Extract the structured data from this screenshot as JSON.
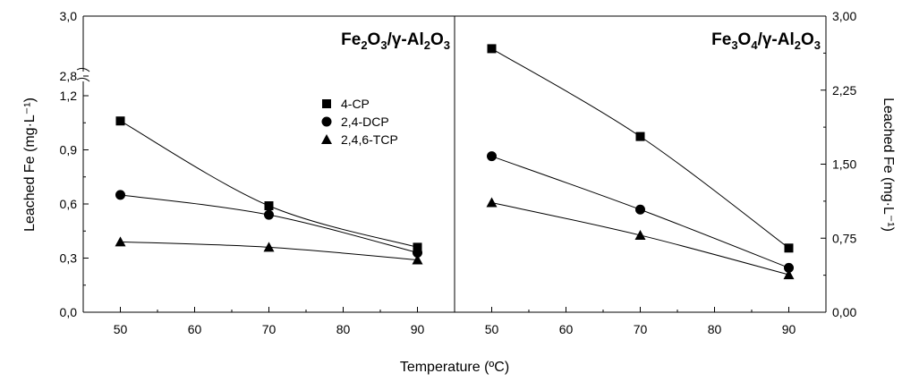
{
  "chart_data": {
    "type": "scatter",
    "xlabel": "Temperature (ºC)",
    "x_ticks": [
      "50",
      "60",
      "70",
      "80",
      "90"
    ],
    "left_ylabel": "Leached Fe (mg·L⁻¹)",
    "right_ylabel": "Leached Fe (mg·L⁻¹)",
    "left_y_ticks": [
      "0,0",
      "0,3",
      "0,6",
      "0,9",
      "1,2",
      "2,8",
      "3,0"
    ],
    "right_y_ticks": [
      "0,00",
      "0,75",
      "1,50",
      "2,25",
      "3,00"
    ],
    "left_y_break": {
      "lower": [
        0,
        1.3
      ],
      "upper": [
        2.8,
        3.0
      ]
    },
    "right_ylim": [
      0,
      3.0
    ],
    "legend": [
      {
        "label": "4-CP",
        "marker": "square"
      },
      {
        "label": "2,4-DCP",
        "marker": "circle"
      },
      {
        "label": "2,4,6-TCP",
        "marker": "triangle"
      }
    ],
    "panels": [
      {
        "label": "Fe2O3/γ-Al2O3",
        "x": [
          50,
          70,
          90
        ],
        "series": [
          {
            "name": "4-CP",
            "values": [
              1.06,
              0.59,
              0.36
            ]
          },
          {
            "name": "2,4-DCP",
            "values": [
              0.65,
              0.54,
              0.33
            ]
          },
          {
            "name": "2,4,6-TCP",
            "values": [
              0.39,
              0.36,
              0.29
            ]
          }
        ]
      },
      {
        "label": "Fe3O4/γ-Al2O3",
        "x": [
          50,
          70,
          90
        ],
        "series": [
          {
            "name": "4-CP",
            "values": [
              2.67,
              1.78,
              0.65
            ]
          },
          {
            "name": "2,4-DCP",
            "values": [
              1.58,
              1.04,
              0.45
            ]
          },
          {
            "name": "2,4,6-TCP",
            "values": [
              1.11,
              0.78,
              0.38
            ]
          }
        ]
      }
    ]
  }
}
